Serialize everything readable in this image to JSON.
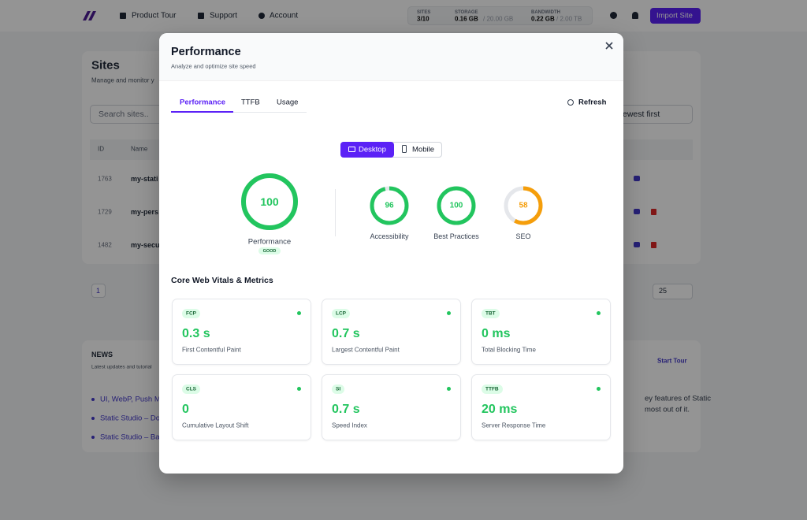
{
  "nav": {
    "items": [
      "Product Tour",
      "Support",
      "Account"
    ],
    "stats": [
      {
        "label": "SITES",
        "value": "3/10"
      },
      {
        "label": "STORAGE",
        "value": "0.16 GB",
        "limit": "/ 20.00 GB"
      },
      {
        "label": "BANDWIDTH",
        "value": "0.22 GB",
        "limit": "/ 2.00 TB"
      }
    ],
    "button": "Import Site"
  },
  "sites": {
    "title": "Sites",
    "subtitle": "Manage and monitor y",
    "search": "Search sites..",
    "sort": "ewest first",
    "columns": [
      "ID",
      "Name"
    ],
    "rows": [
      [
        "1763",
        "my-stati"
      ],
      [
        "1729",
        "my-pers"
      ],
      [
        "1482",
        "my-secu"
      ]
    ],
    "page": "1",
    "page_size": "25"
  },
  "news": {
    "title": "NEWS",
    "subtitle": "Latest updates and tutorial",
    "action": "Start Tour",
    "links": [
      "UI, WebP, Push M",
      "Static Studio – Do",
      "Static Studio – Ba"
    ],
    "text": [
      "ey features of Static",
      "most out of it."
    ]
  },
  "modal": {
    "title": "Performance",
    "subtitle": "Analyze and optimize site speed",
    "tabs": [
      "Performance",
      "TTFB",
      "Usage"
    ],
    "refresh": "Refresh",
    "devices": [
      "Desktop",
      "Mobile"
    ],
    "main_score": {
      "value": 100,
      "label": "Performance",
      "rating": "GOOD",
      "color": "#22c55e"
    },
    "scores": [
      {
        "value": 96,
        "label": "Accessibility",
        "color": "#22c55e"
      },
      {
        "value": 100,
        "label": "Best Practices",
        "color": "#22c55e"
      },
      {
        "value": 58,
        "label": "SEO",
        "color": "#f59e0b"
      }
    ],
    "section_title": "Core Web Vitals & Metrics",
    "metrics": [
      {
        "abbr": "FCP",
        "value": "0.3 s",
        "name": "First Contentful Paint"
      },
      {
        "abbr": "LCP",
        "value": "0.7 s",
        "name": "Largest Contentful Paint"
      },
      {
        "abbr": "TBT",
        "value": "0 ms",
        "name": "Total Blocking Time"
      },
      {
        "abbr": "CLS",
        "value": "0",
        "name": "Cumulative Layout Shift"
      },
      {
        "abbr": "SI",
        "value": "0.7 s",
        "name": "Speed Index"
      },
      {
        "abbr": "TTFB",
        "value": "20 ms",
        "name": "Server Response Time"
      }
    ]
  }
}
